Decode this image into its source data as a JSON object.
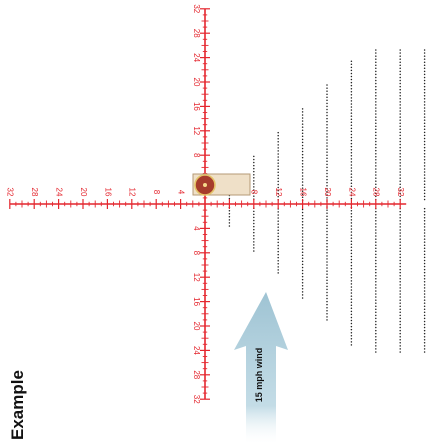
{
  "side_label": "Example",
  "reticle": {
    "color": "#e4272f",
    "label_color": "#e4272f",
    "center_value": 0,
    "horizontal_labels": {
      "left": [
        32,
        28,
        24,
        20,
        16,
        12,
        8,
        4
      ],
      "right": [
        4,
        8,
        12,
        16,
        20,
        24,
        28,
        32
      ]
    },
    "vertical_labels": {
      "up": [
        32,
        28,
        24,
        20,
        16,
        12,
        8,
        4
      ],
      "down": [
        4,
        8,
        12,
        16,
        20,
        24,
        28,
        32
      ]
    }
  },
  "dot_grid": {
    "color": "#222222",
    "columns": [
      2,
      4,
      6,
      8,
      10,
      12,
      14,
      16,
      18
    ]
  },
  "target": {
    "highlight_fill": "#efe0c8",
    "highlight_stroke": "#b59a76",
    "circle_fill": "#a63c2c",
    "circle_stroke": "#e4c46a"
  },
  "wind": {
    "label": "15 mph wind",
    "arrow_color": "#9ec3d3",
    "label_color": "#111111"
  }
}
